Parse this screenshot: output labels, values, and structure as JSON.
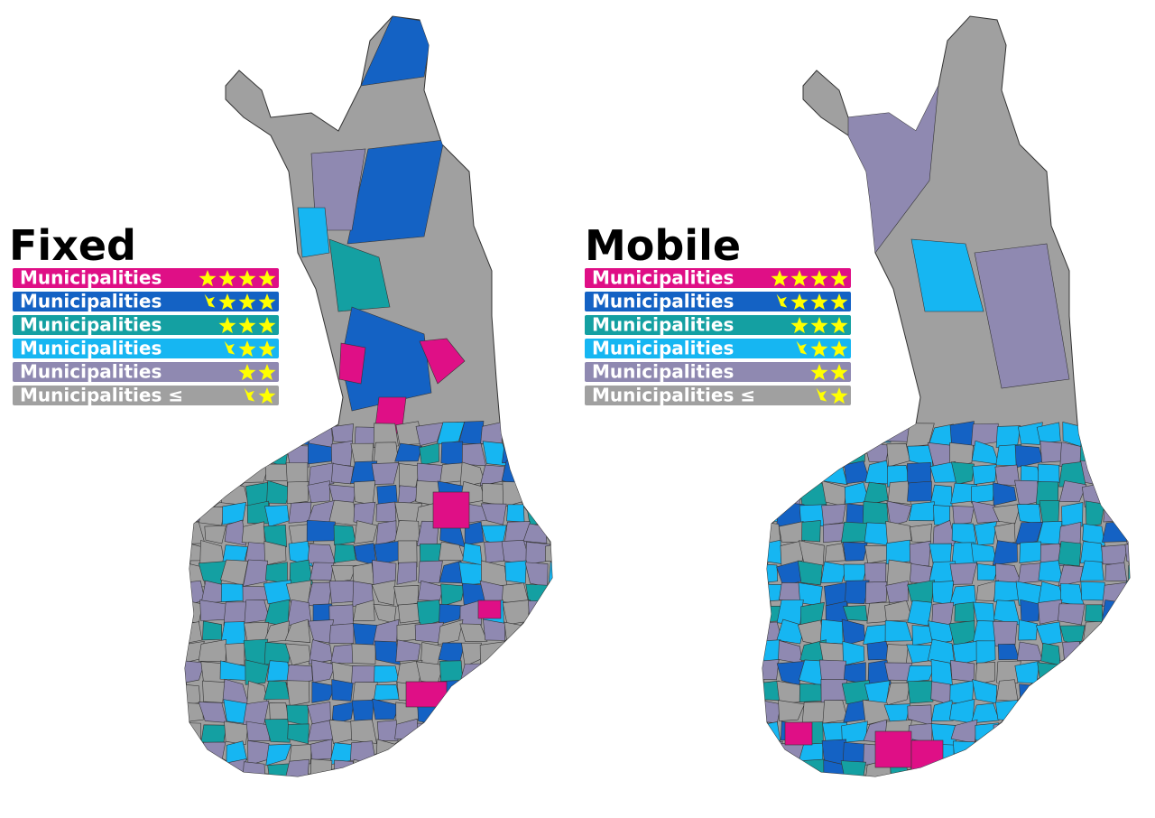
{
  "maps": [
    {
      "title": "Fixed",
      "legend": [
        {
          "label": "Municipalities",
          "stars": 4,
          "color": "#df0f86"
        },
        {
          "label": "Municipalities",
          "stars": 3.5,
          "color": "#1462c4"
        },
        {
          "label": "Municipalities",
          "stars": 3,
          "color": "#14a0a2"
        },
        {
          "label": "Municipalities",
          "stars": 2.5,
          "color": "#16b6f2"
        },
        {
          "label": "Municipalities",
          "stars": 2,
          "color": "#8f89b1"
        },
        {
          "label": "Municipalities ≤",
          "stars": 1.5,
          "color": "#a0a0a0"
        }
      ]
    },
    {
      "title": "Mobile",
      "legend": [
        {
          "label": "Municipalities",
          "stars": 4,
          "color": "#df0f86"
        },
        {
          "label": "Municipalities",
          "stars": 3.5,
          "color": "#1462c4"
        },
        {
          "label": "Municipalities",
          "stars": 3,
          "color": "#14a0a2"
        },
        {
          "label": "Municipalities",
          "stars": 2.5,
          "color": "#16b6f2"
        },
        {
          "label": "Municipalities",
          "stars": 2,
          "color": "#8f89b1"
        },
        {
          "label": "Municipalities ≤",
          "stars": 1.5,
          "color": "#a0a0a0"
        }
      ]
    }
  ]
}
